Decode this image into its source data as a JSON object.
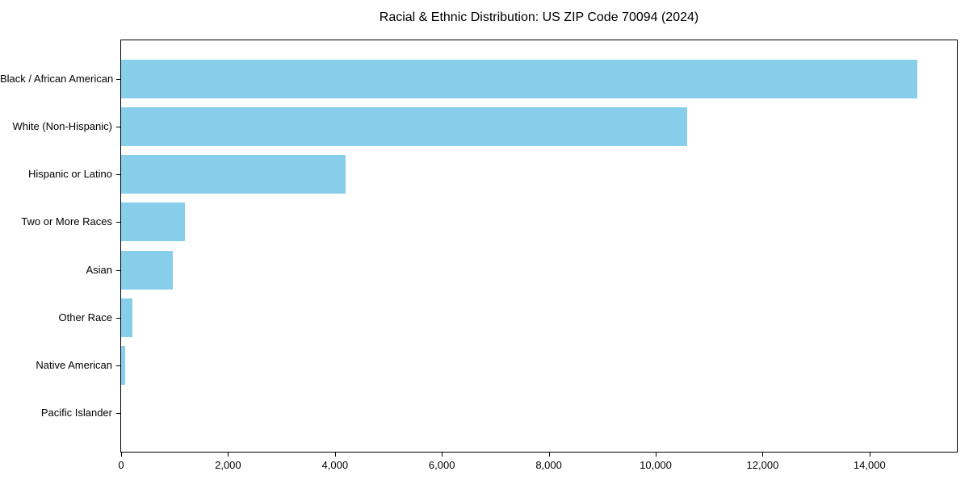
{
  "chart_data": {
    "type": "bar",
    "orientation": "horizontal",
    "title": "Racial & Ethnic Distribution: US ZIP Code 70094 (2024)",
    "categories": [
      "Black / African American",
      "White (Non-Hispanic)",
      "Hispanic or Latino",
      "Two or More Races",
      "Asian",
      "Other Race",
      "Native American",
      "Pacific Islander"
    ],
    "values": [
      14890,
      10590,
      4200,
      1200,
      960,
      210,
      80,
      0
    ],
    "xlabel": "",
    "ylabel": "",
    "xlim": [
      0,
      15634
    ],
    "x_ticks": [
      0,
      2000,
      4000,
      6000,
      8000,
      10000,
      12000,
      14000
    ],
    "x_tick_labels": [
      "0",
      "2,000",
      "4,000",
      "6,000",
      "8,000",
      "10,000",
      "12,000",
      "14,000"
    ],
    "bar_color": "#87CEEB",
    "axis_color": "#000000",
    "background_color": "#FFFFFF",
    "grid": false,
    "legend": false
  }
}
